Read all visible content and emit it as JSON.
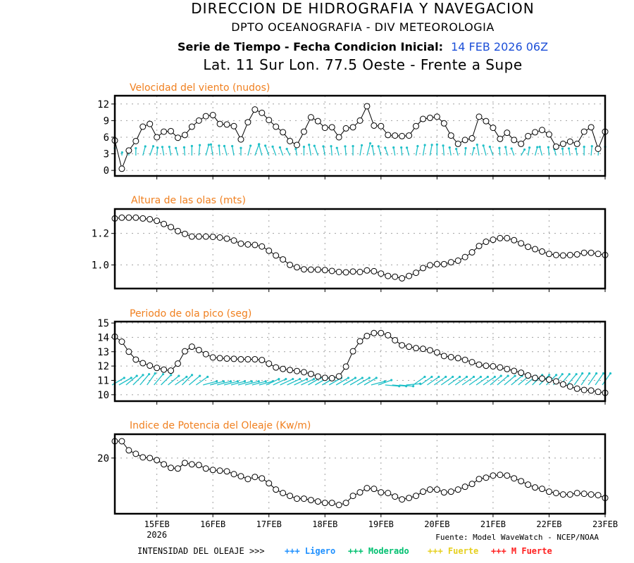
{
  "header": {
    "line1": "DIRECCION DE HIDROGRAFIA Y NAVEGACION",
    "line2": "DPTO OCEANOGRAFIA - DIV METEOROLOGIA",
    "line3_prefix": "Serie de Tiempo - Fecha Condicion Inicial:",
    "line3_date": "14 FEB 2026 06Z",
    "line4": "Lat. 11 Sur  Lon. 77.5 Oeste - Frente a Supe"
  },
  "footer": {
    "source": "Fuente: Model WaveWatch - NCEP/NOAA",
    "legend_label": "INTENSIDAD DEL OLEAJE >>>",
    "legend_items": [
      {
        "label": "+++ Ligero",
        "color": "#1e90ff"
      },
      {
        "label": "+++ Moderado",
        "color": "#00c070"
      },
      {
        "label": "+++ Fuerte",
        "color": "#e6d020"
      },
      {
        "label": "+++ M Fuerte",
        "color": "#ff2020"
      }
    ]
  },
  "colors": {
    "title": "#f08020",
    "arrow": "#20c0c8",
    "line": "#000000",
    "grid": "#a0a0a0"
  },
  "chart_data": [
    {
      "type": "line",
      "title": "Velocidad del viento (nudos)",
      "ylim": [
        -1,
        13.5
      ],
      "yticks": [
        0,
        3,
        6,
        9,
        12
      ],
      "ytick_labels": [
        "0",
        "3",
        "6",
        "9",
        "12"
      ],
      "x_start_day": 14.25,
      "x_step_hours": 3,
      "xlim": [
        14.25,
        23
      ],
      "xticks": [
        15,
        16,
        17,
        18,
        19,
        20,
        21,
        22,
        23
      ],
      "xtick_labels": [
        "15FEB",
        "16FEB",
        "17FEB",
        "18FEB",
        "19FEB",
        "20FEB",
        "21FEB",
        "22FEB",
        "23FEB"
      ],
      "xtick_sublabel": "2026",
      "grid": true,
      "values": [
        5.4,
        0.3,
        3.6,
        5.3,
        7.9,
        8.4,
        6.0,
        7.0,
        7.1,
        5.9,
        6.4,
        7.9,
        9.0,
        9.8,
        10.0,
        8.4,
        8.3,
        8.0,
        5.6,
        8.7,
        11.0,
        10.4,
        9.1,
        7.9,
        6.9,
        5.3,
        4.6,
        7.0,
        9.6,
        8.9,
        7.7,
        7.8,
        6.0,
        7.6,
        7.8,
        9.0,
        11.6,
        8.1,
        8.0,
        6.4,
        6.3,
        6.2,
        6.3,
        8.0,
        9.3,
        9.5,
        9.7,
        8.5,
        6.3,
        4.8,
        5.5,
        5.8,
        9.7,
        8.9,
        7.7,
        5.7,
        6.8,
        5.5,
        4.8,
        6.2,
        6.9,
        7.3,
        6.5,
        4.3,
        4.8,
        5.2,
        4.8,
        7.0,
        7.8,
        3.9,
        7.0
      ],
      "arrow_direction_deg": [
        0,
        5,
        0,
        0,
        15,
        20,
        5,
        -10,
        -10,
        -15,
        -5,
        0,
        5,
        15,
        -10,
        -5,
        -15,
        -10,
        0,
        15,
        20,
        -15,
        -20,
        -20,
        -20,
        -25,
        -10,
        0,
        -10,
        -20,
        -10,
        -5,
        -15,
        -5,
        0,
        10,
        15,
        -10,
        -15,
        -20,
        -10,
        -5,
        -15,
        10,
        10,
        10,
        0,
        -5,
        -10,
        -15,
        5,
        15,
        -10,
        -15,
        -20,
        -5,
        -10,
        -20,
        30,
        10,
        15,
        -15,
        -5,
        -15,
        -5,
        -10,
        -10,
        0,
        5,
        5,
        0
      ]
    },
    {
      "type": "line",
      "title": "Altura de las olas (mts)",
      "ylim": [
        0.85,
        1.355
      ],
      "yticks": [
        1.0,
        1.2
      ],
      "ytick_labels": [
        "1.0",
        "1.2"
      ],
      "grid": true,
      "values": [
        1.295,
        1.3,
        1.3,
        1.3,
        1.295,
        1.29,
        1.28,
        1.26,
        1.24,
        1.215,
        1.197,
        1.18,
        1.18,
        1.18,
        1.178,
        1.174,
        1.167,
        1.155,
        1.135,
        1.13,
        1.127,
        1.117,
        1.09,
        1.06,
        1.035,
        1.0,
        0.985,
        0.972,
        0.97,
        0.97,
        0.967,
        0.962,
        0.955,
        0.953,
        0.958,
        0.955,
        0.965,
        0.96,
        0.945,
        0.93,
        0.925,
        0.915,
        0.93,
        0.95,
        0.98,
        0.998,
        1.005,
        1.005,
        1.017,
        1.027,
        1.05,
        1.08,
        1.12,
        1.147,
        1.16,
        1.17,
        1.17,
        1.157,
        1.137,
        1.115,
        1.1,
        1.085,
        1.07,
        1.063,
        1.06,
        1.063,
        1.067,
        1.077,
        1.077,
        1.07,
        1.063
      ]
    },
    {
      "type": "line",
      "title": "Periodo de ola pico (seg)",
      "ylim": [
        9.55,
        15.1
      ],
      "yticks": [
        10,
        11,
        12,
        13,
        14,
        15
      ],
      "ytick_labels": [
        "10",
        "11",
        "12",
        "13",
        "14",
        "15"
      ],
      "grid": true,
      "values": [
        14.05,
        13.7,
        13.0,
        12.45,
        12.2,
        12.03,
        11.87,
        11.75,
        11.68,
        12.17,
        13.03,
        13.35,
        13.12,
        12.83,
        12.6,
        12.55,
        12.52,
        12.5,
        12.47,
        12.47,
        12.47,
        12.42,
        12.17,
        11.9,
        11.8,
        11.72,
        11.65,
        11.57,
        11.45,
        11.27,
        11.18,
        11.15,
        11.28,
        11.96,
        13.03,
        13.73,
        14.1,
        14.3,
        14.3,
        14.15,
        13.8,
        13.45,
        13.35,
        13.25,
        13.2,
        13.1,
        12.95,
        12.7,
        12.62,
        12.55,
        12.43,
        12.27,
        12.1,
        12.02,
        11.98,
        11.9,
        11.79,
        11.66,
        11.53,
        11.34,
        11.17,
        11.13,
        11.05,
        10.93,
        10.72,
        10.57,
        10.42,
        10.33,
        10.29,
        10.2,
        10.13
      ],
      "arrow_direction_deg": [
        60,
        60,
        50,
        45,
        40,
        35,
        40,
        45,
        50,
        55,
        45,
        50,
        55,
        75,
        75,
        75,
        75,
        75,
        75,
        75,
        75,
        75,
        65,
        65,
        65,
        65,
        65,
        65,
        60,
        60,
        60,
        60,
        60,
        60,
        60,
        60,
        60,
        75,
        70,
        95,
        95,
        95,
        85,
        55,
        55,
        55,
        55,
        55,
        55,
        55,
        55,
        55,
        55,
        55,
        50,
        50,
        50,
        50,
        50,
        50,
        45,
        45,
        45,
        40,
        40,
        40,
        35,
        35,
        35,
        35,
        35
      ]
    },
    {
      "type": "line",
      "title": "Indice de Potencia del Oleaje (Kw/m)",
      "ylim": [
        12.05,
        23.4
      ],
      "yticks": [
        20
      ],
      "ytick_labels": [
        "20"
      ],
      "grid": true,
      "values": [
        22.4,
        22.4,
        21.1,
        20.6,
        20.1,
        20.0,
        19.7,
        19.1,
        18.6,
        18.5,
        19.3,
        19.1,
        19.0,
        18.5,
        18.3,
        18.2,
        18.1,
        17.7,
        17.4,
        17.0,
        17.3,
        17.1,
        16.4,
        15.5,
        15.0,
        14.6,
        14.2,
        14.2,
        14.0,
        13.8,
        13.6,
        13.6,
        13.3,
        13.6,
        14.6,
        15.1,
        15.7,
        15.6,
        15.1,
        15.0,
        14.5,
        14.1,
        14.3,
        14.6,
        15.2,
        15.5,
        15.5,
        15.1,
        15.2,
        15.5,
        15.9,
        16.3,
        17.0,
        17.2,
        17.5,
        17.6,
        17.5,
        17.1,
        16.7,
        16.2,
        15.8,
        15.6,
        15.2,
        15.0,
        14.8,
        14.8,
        15.0,
        14.9,
        14.8,
        14.7,
        14.3
      ]
    }
  ]
}
